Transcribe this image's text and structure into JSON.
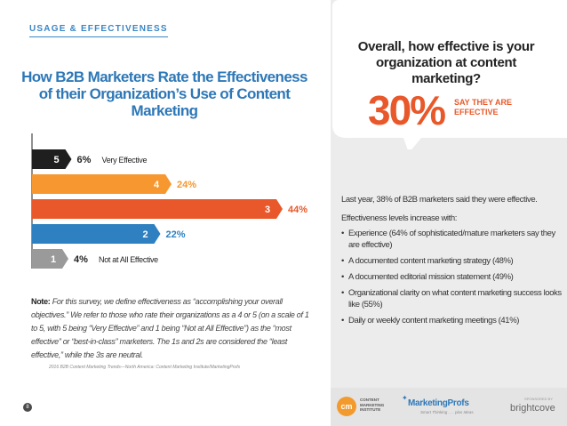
{
  "section_tag": "USAGE & EFFECTIVENESS",
  "chart_data": {
    "type": "bar",
    "orientation": "horizontal",
    "title": "How B2B Marketers Rate the Effectiveness of their Organization’s Use of Content Marketing",
    "categories": [
      "5",
      "4",
      "3",
      "2",
      "1"
    ],
    "values": [
      6,
      24,
      44,
      22,
      4
    ],
    "value_labels": [
      "6%",
      "24%",
      "44%",
      "22%",
      "4%"
    ],
    "bar_colors": [
      "#1f1f1f",
      "#f7972f",
      "#e8582a",
      "#2f80c0",
      "#9a9a9a"
    ],
    "annotations": [
      "Very Effective",
      "",
      "",
      "",
      "Not at All Effective"
    ],
    "xlim": [
      0,
      44
    ]
  },
  "note": {
    "label": "Note:",
    "text": "For this survey, we define effectiveness as “accomplishing your overall objectives.” We refer to those who rate their organizations as a 4 or 5 (on a scale of 1 to 5, with 5 being “Very Effective” and 1 being “Not at All Effective”) as the “most effective” or “best-in-class” marketers. The 1s and 2s are considered the “least effective,” while the 3s are neutral."
  },
  "source": "2016 B2B Content Marketing Trends—North America: Content Marketing Institute/MarketingProfs",
  "page_number": "8",
  "callout": {
    "question": "Overall, how effective is your organization at content marketing?",
    "percent": "30%",
    "label": "SAY THEY ARE EFFECTIVE"
  },
  "body": {
    "last_year": "Last year, 38% of B2B marketers said they were effective.",
    "intro": "Effectiveness levels increase with:",
    "bullets": [
      "Experience (64% of sophisticated/mature marketers say they are effective)",
      "A documented content marketing strategy (48%)",
      "A documented editorial mission statement (49%)",
      "Organizational clarity on what content marketing success looks like (55%)",
      "Daily or weekly content marketing meetings (41%)"
    ]
  },
  "footer": {
    "cmi_logo": "cm",
    "cmi_text": "CONTENT MARKETING INSTITUTE",
    "mp_name": "MarketingProfs",
    "mp_tagline": "Smart Thinking . . . plus Ideas.",
    "sponsor_label": "SPONSORED BY",
    "sponsor_name": "brightcove"
  },
  "colors": {
    "accent_blue": "#2e78b7",
    "accent_orange": "#e8582a"
  }
}
